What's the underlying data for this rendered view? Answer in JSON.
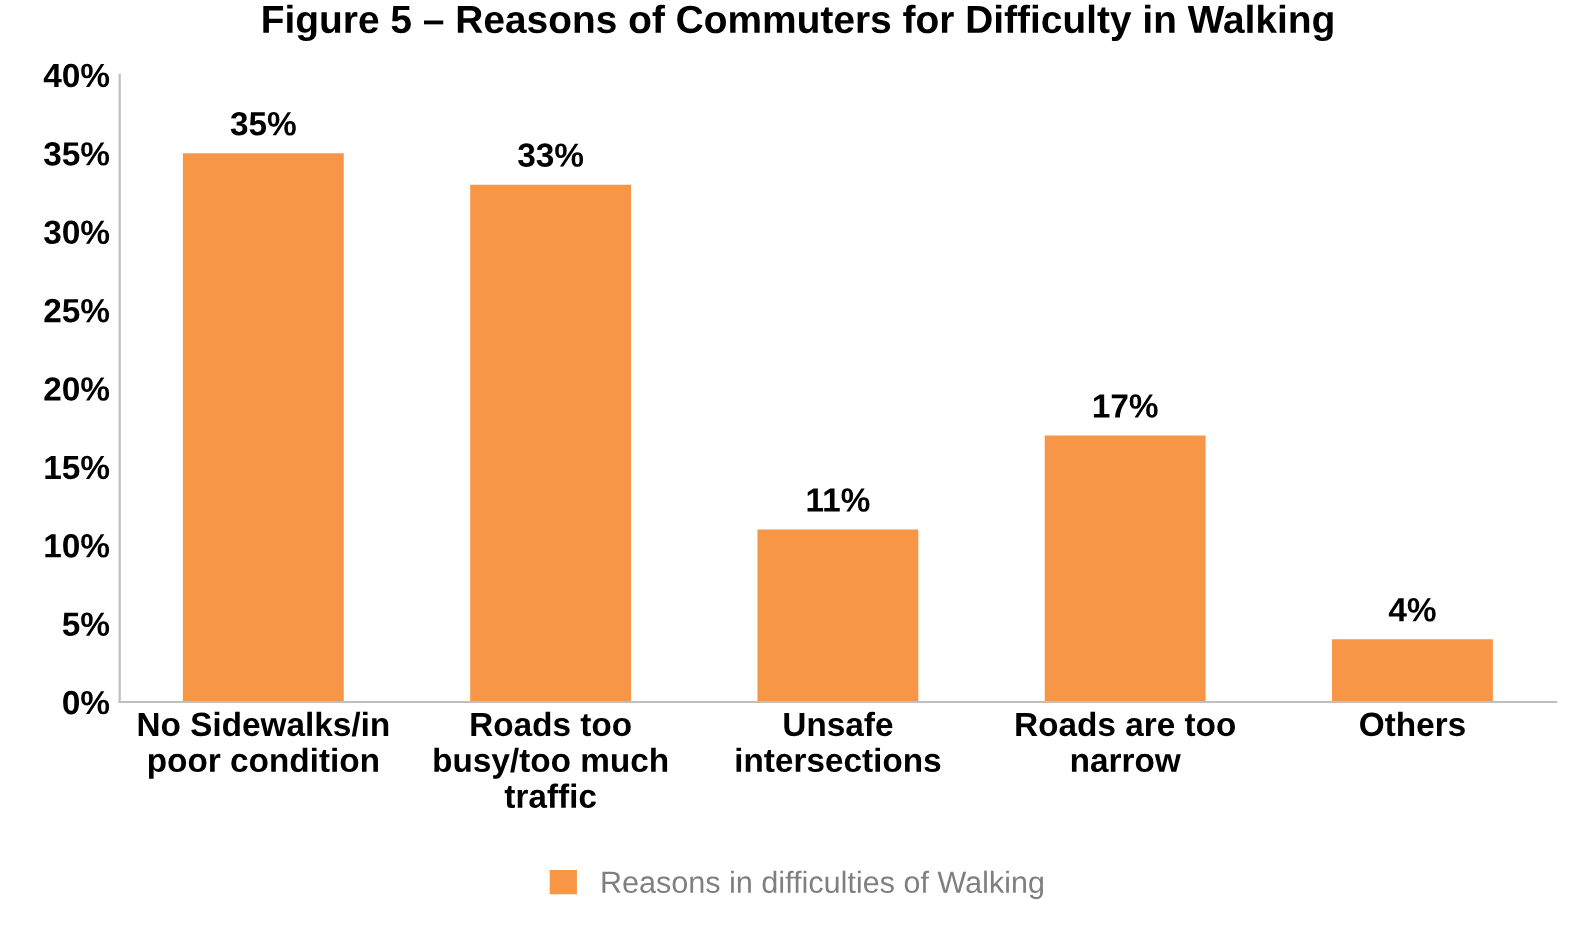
{
  "chart_data": {
    "type": "bar",
    "title": "Figure 5 – Reasons of Commuters for Difficulty in Walking",
    "categories": [
      "No Sidewalks/in\npoor condition",
      "Roads too\nbusy/too much\ntraffic",
      "Unsafe\nintersections",
      "Roads are too\nnarrow",
      "Others"
    ],
    "series": [
      {
        "name": "Reasons in difficulties of Walking",
        "color": "#f79646",
        "values": [
          35,
          33,
          11,
          17,
          4
        ],
        "value_labels": [
          "35%",
          "33%",
          "11%",
          "17%",
          "4%"
        ]
      }
    ],
    "ylim": [
      0,
      40
    ],
    "yticks": [
      {
        "value": 0,
        "label": "0%"
      },
      {
        "value": 5,
        "label": "5%"
      },
      {
        "value": 10,
        "label": "10%"
      },
      {
        "value": 15,
        "label": "15%"
      },
      {
        "value": 20,
        "label": "20%"
      },
      {
        "value": 25,
        "label": "25%"
      },
      {
        "value": 30,
        "label": "30%"
      },
      {
        "value": 35,
        "label": "35%"
      },
      {
        "value": 40,
        "label": "40%"
      }
    ],
    "legend": "bottom"
  }
}
